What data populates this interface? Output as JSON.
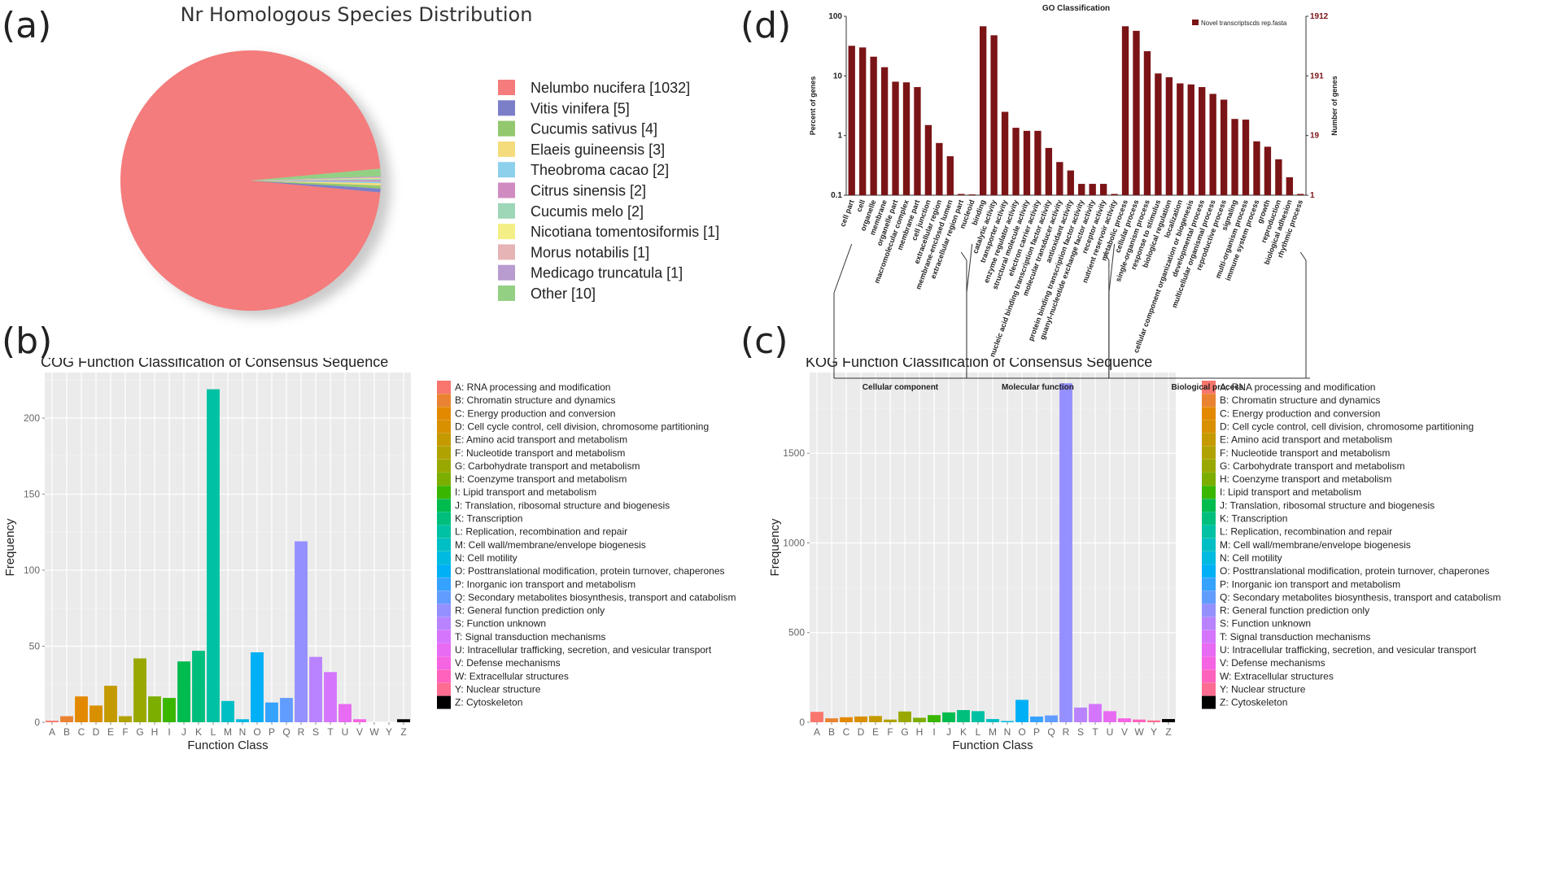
{
  "panels": {
    "a": "(a)",
    "b": "(b)",
    "c": "(c)",
    "d": "(d)"
  },
  "colors": {
    "cog": [
      "#F8766D",
      "#EA8331",
      "#E38900",
      "#D89000",
      "#C49A00",
      "#B0A200",
      "#99A800",
      "#7CAE00",
      "#39B600",
      "#00BB4E",
      "#00BF7D",
      "#00C1A3",
      "#00BFC4",
      "#00BAE0",
      "#00B0F6",
      "#35A2FF",
      "#619CFF",
      "#9590FF",
      "#B983FF",
      "#D575FE",
      "#E76BF3",
      "#F564E3",
      "#FF62BC",
      "#FF6C91"
    ],
    "pie": [
      "#F47C7C",
      "#7B7FC8",
      "#93C86E",
      "#F4DC7C",
      "#8CD0EC",
      "#D08CC0",
      "#9ED6B8",
      "#F4EE86",
      "#E6B4B4",
      "#B89CD0",
      "#94D084"
    ],
    "go_bar": "#7B1416"
  },
  "chart_data": [
    {
      "id": "a",
      "type": "pie",
      "title": "Nr Homologous Species Distribution",
      "labels": [
        "Nelumbo nucifera [1032]",
        "Vitis vinifera [5]",
        "Cucumis sativus [4]",
        "Elaeis guineensis [3]",
        "Theobroma cacao [2]",
        "Citrus sinensis [2]",
        "Cucumis melo [2]",
        "Nicotiana tomentosiformis [1]",
        "Morus notabilis [1]",
        "Medicago truncatula [1]",
        "Other [10]"
      ],
      "values": [
        1032,
        5,
        4,
        3,
        2,
        2,
        2,
        1,
        1,
        1,
        10
      ]
    },
    {
      "id": "b",
      "type": "bar",
      "title": "COG Function Classification of Consensus Sequence",
      "xlabel": "Function Class",
      "ylabel": "Frequency",
      "ylim": [
        0,
        230
      ],
      "yticks": [
        0,
        50,
        100,
        150,
        200
      ],
      "categories": [
        "A",
        "B",
        "C",
        "D",
        "E",
        "F",
        "G",
        "H",
        "I",
        "J",
        "K",
        "L",
        "M",
        "N",
        "O",
        "P",
        "Q",
        "R",
        "S",
        "T",
        "U",
        "V",
        "W",
        "Y",
        "Z"
      ],
      "values": [
        1,
        4,
        17,
        11,
        24,
        4,
        42,
        17,
        16,
        40,
        47,
        219,
        14,
        2,
        46,
        13,
        16,
        119,
        43,
        33,
        12,
        2,
        0,
        0,
        2
      ],
      "legend": [
        "A: RNA processing and modification",
        "B: Chromatin structure and dynamics",
        "C: Energy production and conversion",
        "D: Cell cycle control, cell division, chromosome partitioning",
        "E: Amino acid transport and metabolism",
        "F: Nucleotide transport and metabolism",
        "G: Carbohydrate transport and metabolism",
        "H: Coenzyme transport and metabolism",
        "I: Lipid transport and metabolism",
        "J: Translation, ribosomal structure and biogenesis",
        "K: Transcription",
        "L: Replication, recombination and repair",
        "M: Cell wall/membrane/envelope biogenesis",
        "N: Cell motility",
        "O: Posttranslational modification, protein turnover, chaperones",
        "P: Inorganic ion transport and metabolism",
        "Q: Secondary metabolites biosynthesis, transport and catabolism",
        "R: General function prediction only",
        "S: Function unknown",
        "T: Signal transduction mechanisms",
        "U: Intracellular trafficking, secretion, and vesicular transport",
        "V: Defense mechanisms",
        "W: Extracellular structures",
        "Y: Nuclear structure",
        "Z: Cytoskeleton"
      ]
    },
    {
      "id": "c",
      "type": "bar",
      "title": "KOG Function Classification of Consensus Sequence",
      "xlabel": "Function Class",
      "ylabel": "Frequency",
      "ylim": [
        0,
        1950
      ],
      "yticks": [
        0,
        500,
        1000,
        1500
      ],
      "categories": [
        "A",
        "B",
        "C",
        "D",
        "E",
        "F",
        "G",
        "H",
        "I",
        "J",
        "K",
        "L",
        "M",
        "N",
        "O",
        "P",
        "Q",
        "R",
        "S",
        "T",
        "U",
        "V",
        "W",
        "Y",
        "Z"
      ],
      "values": [
        58,
        22,
        28,
        32,
        35,
        15,
        60,
        25,
        40,
        55,
        68,
        62,
        18,
        3,
        125,
        32,
        38,
        1890,
        82,
        102,
        62,
        22,
        15,
        10,
        18
      ],
      "legend": [
        "A: RNA processing and modification",
        "B: Chromatin structure and dynamics",
        "C: Energy production and conversion",
        "D: Cell cycle control, cell division, chromosome partitioning",
        "E: Amino acid transport and metabolism",
        "F: Nucleotide transport and metabolism",
        "G: Carbohydrate transport and metabolism",
        "H: Coenzyme transport and metabolism",
        "I: Lipid transport and metabolism",
        "J: Translation, ribosomal structure and biogenesis",
        "K: Transcription",
        "L: Replication, recombination and repair",
        "M: Cell wall/membrane/envelope biogenesis",
        "N: Cell motility",
        "O: Posttranslational modification, protein turnover, chaperones",
        "P: Inorganic ion transport and metabolism",
        "Q: Secondary metabolites biosynthesis, transport and catabolism",
        "R: General function prediction only",
        "S: Function unknown",
        "T: Signal transduction mechanisms",
        "U: Intracellular trafficking, secretion, and vesicular transport",
        "V: Defense mechanisms",
        "W: Extracellular structures",
        "Y: Nuclear structure",
        "Z: Cytoskeleton"
      ]
    },
    {
      "id": "d",
      "type": "bar",
      "title": "GO Classification",
      "ylabel": "Percent of genes",
      "y2label": "Number of genes",
      "legend": "Novel transcriptscds rep.fasta",
      "yscale": "log",
      "ylim": [
        0.1,
        100
      ],
      "yticks": [
        "0.1",
        "1",
        "10",
        "100"
      ],
      "y2ticks": [
        "1",
        "19",
        "191",
        "1912"
      ],
      "groups": [
        {
          "name": "Cellular component",
          "categories": [
            "cell part",
            "cell",
            "organelle",
            "membrane",
            "organelle part",
            "macromolecular complex",
            "membrane part",
            "cell junction",
            "extracellular region",
            "membrane-enclosed lumen",
            "extracellular region part"
          ],
          "values": [
            32,
            30,
            21,
            14,
            8,
            7.8,
            6.5,
            1.5,
            0.75,
            0.45,
            0.105
          ]
        },
        {
          "name": "Molecular function",
          "categories": [
            "nucleoid",
            "binding",
            "catalytic activity",
            "transporter activity",
            "enzyme regulator activity",
            "structural molecule activity",
            "electron carrier activity",
            "nucleic acid binding transcription factor activity",
            "molecular transducer activity",
            "antioxidant activity",
            "protein binding transcription factor activity",
            "guanyl-nucleotide exchange factor activity",
            "receptor activity"
          ],
          "values": [
            0.1,
            68,
            48,
            2.5,
            1.35,
            1.2,
            1.2,
            0.62,
            0.36,
            0.26,
            0.155,
            0.155,
            0.155
          ]
        },
        {
          "name": "Biological process",
          "categories": [
            "nutrient reservoir activity",
            "metabolic process",
            "cellular process",
            "single-organism process",
            "response to stimulus",
            "biological regulation",
            "localization",
            "cellular component organization or biogenesis",
            "developmental process",
            "multicellular organismal process",
            "reproductive process",
            "signaling",
            "multi-organism process",
            "immune system process",
            "growth",
            "reproduction",
            "biological adhesion",
            "rhythmic process"
          ],
          "values": [
            0.105,
            68,
            57,
            26,
            11,
            9.5,
            7.5,
            7.2,
            6.5,
            5,
            4,
            1.9,
            1.85,
            0.8,
            0.65,
            0.4,
            0.2,
            0.105
          ]
        }
      ]
    }
  ]
}
